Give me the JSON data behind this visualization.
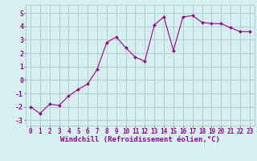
{
  "x": [
    0,
    1,
    2,
    3,
    4,
    5,
    6,
    7,
    8,
    9,
    10,
    11,
    12,
    13,
    14,
    15,
    16,
    17,
    18,
    19,
    20,
    21,
    22,
    23
  ],
  "y": [
    -2.0,
    -2.5,
    -1.8,
    -1.9,
    -1.2,
    -0.7,
    -0.3,
    0.8,
    2.8,
    3.2,
    2.4,
    1.7,
    1.4,
    4.1,
    4.7,
    2.2,
    4.7,
    4.8,
    4.3,
    4.2,
    4.2,
    3.9,
    3.6,
    3.6
  ],
  "line_color": "#990099",
  "marker": "D",
  "marker_size": 2.0,
  "bg_color": "#d6f0f0",
  "grid_color": "#aacccc",
  "xlabel": "Windchill (Refroidissement éolien,°C)",
  "xlabel_color": "#990099",
  "ylabel_ticks": [
    -3,
    -2,
    -1,
    0,
    1,
    2,
    3,
    4,
    5
  ],
  "xlim": [
    -0.5,
    23.5
  ],
  "ylim": [
    -3.4,
    5.6
  ],
  "xtick_labels": [
    "0",
    "1",
    "2",
    "3",
    "4",
    "5",
    "6",
    "7",
    "8",
    "9",
    "10",
    "11",
    "12",
    "13",
    "14",
    "15",
    "16",
    "17",
    "18",
    "19",
    "20",
    "21",
    "22",
    "23"
  ],
  "tick_color": "#990099",
  "tick_fontsize": 5.5,
  "ylabel_fontsize": 6.0,
  "xlabel_fontsize": 6.5
}
